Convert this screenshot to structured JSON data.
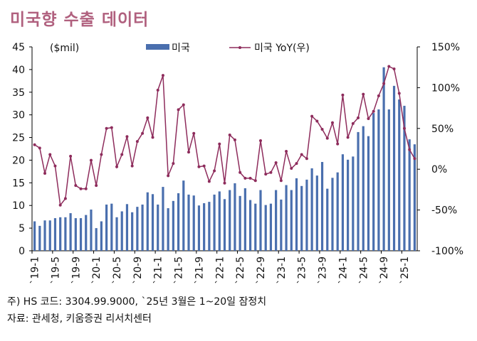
{
  "title": "미국향 수출 데이터",
  "notes": [
    "주) HS 코드: 3304.99.9000, `25년 3월은 1~20일 잠정치",
    "자료: 관세청, 키움증권 리서치센터"
  ],
  "chart_data": {
    "type": "bar+line",
    "title": "미국향 수출 데이터",
    "left_unit": "($mil)",
    "left_ylim": [
      0,
      45
    ],
    "left_ticks": [
      "0",
      "5",
      "10",
      "15",
      "20",
      "25",
      "30",
      "35",
      "40",
      "45"
    ],
    "right_ylim": [
      -100,
      150
    ],
    "right_ticks": [
      "-100%",
      "-50%",
      "0%",
      "50%",
      "100%",
      "150%"
    ],
    "grid": false,
    "legend_placement": "top",
    "colors": {
      "bar": "#4a6fae",
      "line": "#8e2c5c",
      "title": "#b0607e"
    },
    "tick_labels": [
      "`19-1",
      "`19-5",
      "`19-9",
      "`20-1",
      "`20-5",
      "`20-9",
      "`21-1",
      "`21-5",
      "`21-9",
      "`22-1",
      "`22-5",
      "`22-9",
      "`23-1",
      "`23-5",
      "`23-9",
      "`24-1",
      "`24-5",
      "`24-9",
      "`25-1"
    ],
    "series": [
      {
        "name": "미국",
        "type": "bar",
        "axis": "left",
        "values": [
          6.5,
          5.5,
          6.7,
          6.7,
          7.2,
          7.4,
          7.4,
          8.3,
          7.2,
          7.2,
          7.9,
          9.1,
          5.0,
          6.5,
          10.2,
          10.4,
          7.4,
          8.7,
          10.3,
          8.5,
          9.7,
          10.2,
          12.9,
          12.5,
          10.2,
          14.1,
          9.4,
          11.0,
          12.7,
          15.5,
          12.4,
          12.2,
          10.0,
          10.5,
          10.8,
          12.4,
          13.1,
          11.4,
          13.4,
          14.9,
          12.1,
          13.8,
          11.2,
          10.4,
          13.4,
          10.1,
          10.4,
          13.4,
          11.3,
          14.5,
          13.4,
          16.0,
          14.3,
          15.7,
          18.2,
          16.6,
          19.6,
          13.7,
          16.1,
          17.3,
          21.3,
          20.1,
          20.8,
          26.2,
          27.5,
          25.3,
          30.4,
          31.2,
          40.5,
          31.2,
          36.4,
          33.4,
          32.0,
          24.6,
          23.5
        ]
      },
      {
        "name": "미국 YoY(우)",
        "type": "line",
        "axis": "right",
        "values": [
          30,
          26,
          -5,
          18,
          4,
          -44,
          -36,
          16,
          -20,
          -24,
          -24,
          11,
          -20,
          18,
          50,
          51,
          3,
          18,
          40,
          4,
          34,
          44,
          63,
          39,
          97,
          115,
          -8,
          7,
          73,
          79,
          21,
          44,
          3,
          4,
          -15,
          -2,
          31,
          -17,
          42,
          36,
          -4,
          -11,
          -11,
          -14,
          35,
          -6,
          -4,
          8,
          -14,
          22,
          1,
          7,
          18,
          13,
          65,
          59,
          49,
          38,
          57,
          31,
          91,
          39,
          56,
          63,
          92,
          62,
          71,
          90,
          105,
          126,
          123,
          93,
          50,
          24,
          13
        ]
      }
    ]
  }
}
